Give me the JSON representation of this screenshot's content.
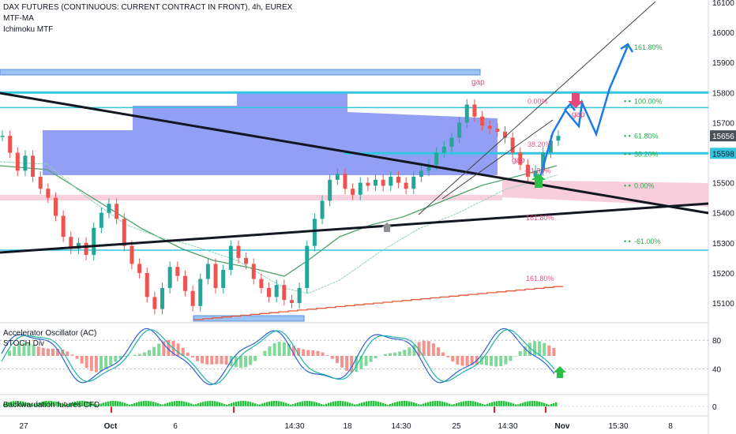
{
  "header": {
    "title": "DAX FUTURES (CONTINUOUS: CURRENT CONTRACT IN FRONT), 4h, EUREX",
    "indicator1": "MTF-MA",
    "indicator2": "Ichimoku MTF"
  },
  "panes": {
    "oscillator_title": "Accelerator Oscillator (AC)",
    "stoch_title": "STOCH Div",
    "backwardation_title": "Backwardation futures CFD"
  },
  "colors": {
    "bull": "#26a69a",
    "bear": "#ef5350",
    "cloud": "#6f7ff0",
    "cyan_line": "#32c6e0",
    "trendline": "#131722",
    "projection": "#1e7ae6",
    "pink_zone": "#f8c6d6",
    "fib_green": "#22b14c",
    "fib_red": "#e0497a"
  },
  "chart_data": {
    "type": "line",
    "title": "DAX FUTURES (CONTINUOUS: CURRENT CONTRACT IN FRONT), 4h, EUREX",
    "y_ticks": [
      "16100",
      "16000",
      "15900",
      "15800",
      "15700",
      "15656",
      "15598",
      "15500",
      "15400",
      "15300",
      "15200",
      "15100"
    ],
    "x_ticks": [
      "27",
      "Oct",
      "6",
      "14:30",
      "18",
      "14:30",
      "25",
      "14:30",
      "Nov",
      "15:30",
      "8"
    ],
    "ylim": [
      15040,
      16110
    ],
    "last_price": "15656",
    "marked_price": "15598",
    "levels": {
      "upper_cyan": 15800,
      "cyan_mid": 15750,
      "cyan_low": 15598,
      "bottom_cyan": 15276
    },
    "fib_right": [
      {
        "label": "161.80%",
        "value": 15950
      },
      {
        "label": "100.00%",
        "value": 15770
      },
      {
        "label": "61.80%",
        "value": 15655
      },
      {
        "label": "38.20%",
        "value": 15595
      },
      {
        "label": "0.00%",
        "value": 15490
      },
      {
        "label": "-61.00%",
        "value": 15305
      }
    ],
    "fib_inner": [
      {
        "label": "0.00%",
        "value": 15770
      },
      {
        "label": "38.20%",
        "value": 15627
      },
      {
        "label": "-61.80%",
        "value": 15540
      },
      {
        "label": "161.80%",
        "value": 15383
      },
      {
        "label": "161.80%",
        "value": 15181
      }
    ],
    "annotations": [
      "gap",
      "gap",
      "gap"
    ],
    "series": [
      {
        "values": [
          15656,
          15600,
          15540,
          15590,
          15520,
          15480,
          15450,
          15390,
          15320,
          15280,
          15300,
          15260,
          15350,
          15400,
          15430,
          15380,
          15290,
          15230,
          15200,
          15120,
          15080,
          15150,
          15220,
          15190,
          15140,
          15090,
          15180,
          15230,
          15150,
          15210,
          15290,
          15250,
          15230,
          15180,
          15150,
          15120,
          15160,
          15110,
          15100,
          15150,
          15290,
          15380,
          15440,
          15510,
          15530,
          15480,
          15460,
          15500,
          15490,
          15510,
          15490,
          15520,
          15500,
          15480,
          15520,
          15540,
          15560,
          15600,
          15620,
          15650,
          15700,
          15760,
          15720,
          15690,
          15680,
          15670,
          15650,
          15600,
          15560,
          15520,
          15540,
          15600,
          15640,
          15656
        ]
      }
    ]
  },
  "oscillator": {
    "y_ticks": [
      "80",
      "40"
    ],
    "x_ticks": [
      "27",
      "Oct",
      "6",
      "14:30",
      "18",
      "14:30",
      "25",
      "14:30",
      "Nov",
      "15:30",
      "8"
    ]
  },
  "backwardation": {
    "y_ticks": [
      "0"
    ]
  }
}
